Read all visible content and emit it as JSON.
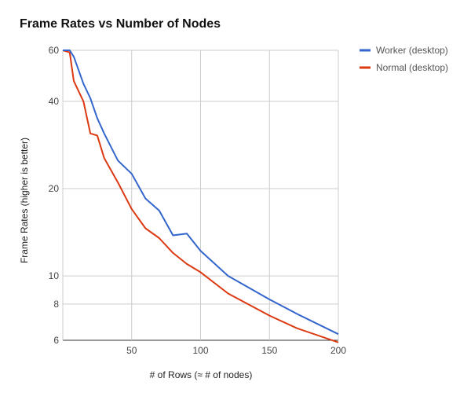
{
  "chart_data": {
    "type": "line",
    "title": "Frame Rates vs Number of Nodes",
    "xlabel": "# of Rows  (≈ # of nodes)",
    "ylabel": "Frame Rates (higher is better)",
    "xlim": [
      0,
      200
    ],
    "ylim": [
      6,
      60
    ],
    "y_scale": "log",
    "x_ticks": [
      50,
      100,
      150,
      200
    ],
    "y_ticks": [
      6,
      8,
      10,
      20,
      40,
      60
    ],
    "grid": true,
    "legend_position": "right",
    "series": [
      {
        "name": "Worker (desktop)",
        "color": "#3366cc",
        "x": [
          0,
          5,
          8,
          15,
          20,
          25,
          30,
          40,
          50,
          60,
          70,
          80,
          90,
          100,
          120,
          150,
          170,
          200
        ],
        "y": [
          60,
          60,
          57,
          46,
          41,
          35,
          31,
          25,
          22.5,
          18.5,
          16.8,
          13.8,
          14,
          12.2,
          10,
          8.3,
          7.4,
          6.3
        ]
      },
      {
        "name": "Normal (desktop)",
        "color": "#dc3912",
        "x": [
          0,
          5,
          8,
          15,
          20,
          25,
          30,
          40,
          50,
          60,
          70,
          80,
          90,
          100,
          120,
          150,
          170,
          200
        ],
        "y": [
          60,
          59,
          47,
          40,
          31,
          30.5,
          25.5,
          21,
          17,
          14.6,
          13.5,
          12,
          11,
          10.3,
          8.7,
          7.3,
          6.6,
          5.9
        ]
      }
    ]
  }
}
